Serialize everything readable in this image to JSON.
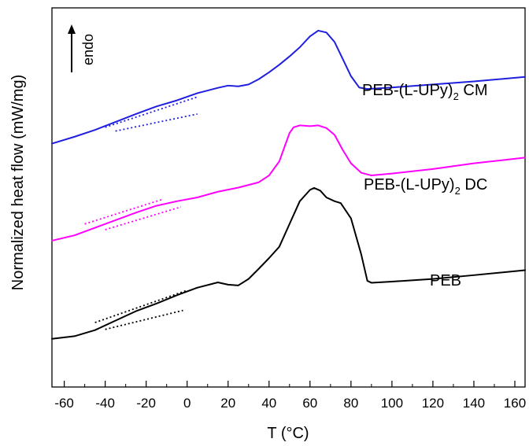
{
  "chart_data": {
    "type": "line",
    "title": "",
    "xlabel": "T (°C)",
    "ylabel": "Normalized heat flow (mW/mg)",
    "xlim": [
      -66,
      165
    ],
    "xticks": [
      -60,
      -40,
      -20,
      0,
      20,
      40,
      60,
      80,
      100,
      120,
      140,
      160
    ],
    "xtick_labels": [
      "-60",
      "-40",
      "-20",
      "0",
      "20",
      "40",
      "60",
      "80",
      "100",
      "120",
      "140",
      "160"
    ],
    "y_ticks_shown": false,
    "grid": false,
    "annotation": {
      "text": "endo",
      "arrow": "up"
    },
    "ylim": [
      0,
      100
    ],
    "series": [
      {
        "name": "PEB-(L-UPy)₂ CM",
        "label_prefix": "PEB-(L-UPy)",
        "label_sub": "2",
        "label_suffix": " CM",
        "color": "#1f1fe0",
        "x": [
          -66,
          -55,
          -45,
          -35,
          -25,
          -15,
          -5,
          5,
          15,
          20,
          25,
          30,
          35,
          40,
          45,
          50,
          55,
          60,
          64,
          68,
          72,
          76,
          80,
          84,
          88,
          100,
          120,
          140,
          165
        ],
        "y": [
          64.2,
          66.0,
          67.8,
          69.9,
          72.0,
          74.0,
          75.6,
          77.5,
          78.9,
          79.5,
          79.3,
          79.8,
          81.2,
          83.0,
          85.0,
          87.2,
          89.6,
          92.5,
          94.0,
          93.5,
          91.0,
          86.5,
          82.0,
          79.0,
          78.6,
          79.0,
          79.8,
          80.6,
          81.8
        ]
      },
      {
        "name": "PEB-(L-UPy)₂ DC",
        "label_prefix": "PEB-(L-UPy)",
        "label_sub": "2",
        "label_suffix": " DC",
        "color": "#ff00ff",
        "x": [
          -66,
          -55,
          -45,
          -35,
          -25,
          -15,
          -5,
          5,
          15,
          25,
          35,
          40,
          45,
          48,
          50,
          52,
          55,
          60,
          64,
          68,
          72,
          76,
          80,
          85,
          90,
          100,
          120,
          140,
          165
        ],
        "y": [
          38.6,
          40.0,
          42.0,
          44.0,
          46.0,
          47.8,
          49.0,
          50.0,
          51.5,
          52.6,
          54.0,
          55.8,
          59.5,
          64.0,
          67.0,
          68.5,
          69.0,
          68.8,
          69.0,
          68.3,
          66.5,
          62.5,
          59.0,
          56.5,
          55.8,
          56.3,
          57.5,
          59.0,
          60.5
        ]
      },
      {
        "name": "PEB",
        "label_prefix": "PEB",
        "label_sub": "",
        "label_suffix": "",
        "color": "#000000",
        "x": [
          -66,
          -55,
          -45,
          -35,
          -25,
          -15,
          -5,
          5,
          15,
          20,
          25,
          30,
          35,
          40,
          45,
          50,
          55,
          60,
          62,
          65,
          68,
          72,
          75,
          80,
          85,
          88,
          90,
          100,
          120,
          140,
          165
        ],
        "y": [
          12.7,
          13.4,
          15.0,
          17.5,
          20.0,
          22.0,
          24.2,
          26.2,
          27.6,
          27.0,
          26.8,
          28.5,
          31.2,
          34.0,
          37.0,
          43.0,
          49.0,
          52.0,
          52.5,
          51.8,
          50.0,
          49.0,
          48.5,
          44.5,
          35.0,
          28.0,
          27.5,
          27.8,
          28.5,
          29.5,
          30.8
        ]
      }
    ],
    "baseline_guides": [
      {
        "series": "PEB-(L-UPy)₂ CM",
        "color": "#1f1fe0",
        "lines": [
          {
            "x": [
              -40,
              5
            ],
            "y": [
              68.5,
              76.5
            ]
          },
          {
            "x": [
              -35,
              5
            ],
            "y": [
              67.5,
              72.0
            ]
          }
        ]
      },
      {
        "series": "PEB-(L-UPy)₂ DC",
        "color": "#ff00ff",
        "lines": [
          {
            "x": [
              -50,
              -12
            ],
            "y": [
              43.0,
              49.5
            ]
          },
          {
            "x": [
              -40,
              -3
            ],
            "y": [
              41.5,
              47.5
            ]
          }
        ]
      },
      {
        "series": "PEB",
        "color": "#000000",
        "lines": [
          {
            "x": [
              -45,
              0
            ],
            "y": [
              17.0,
              25.5
            ]
          },
          {
            "x": [
              -40,
              -2
            ],
            "y": [
              15.2,
              20.2
            ]
          }
        ]
      }
    ]
  }
}
